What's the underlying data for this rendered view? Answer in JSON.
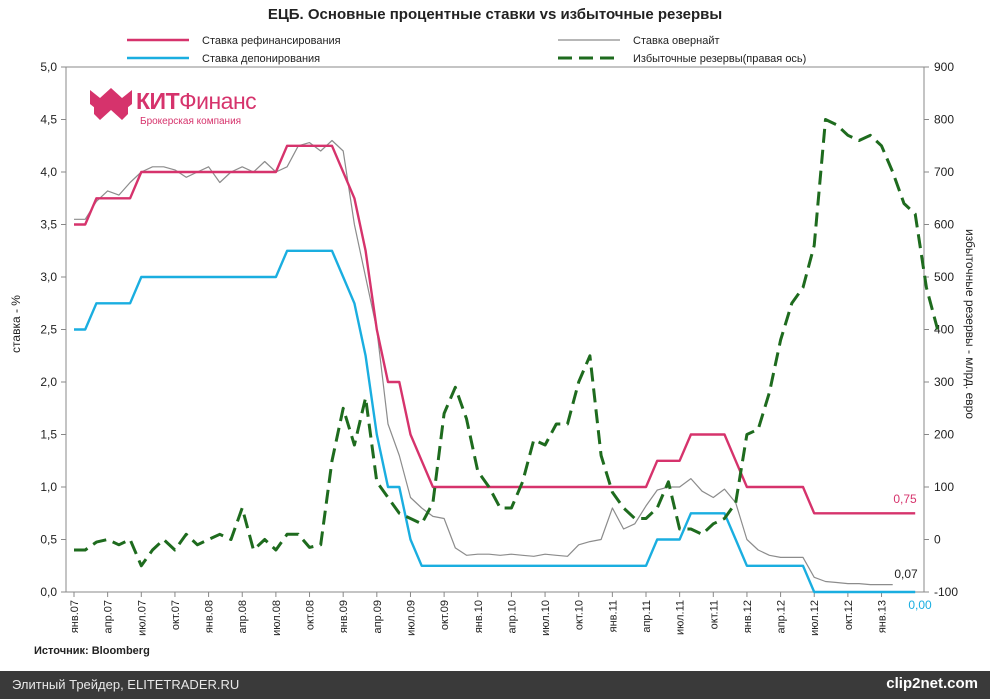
{
  "chart_data": {
    "type": "line",
    "title": "ЕЦБ. Основные процентные ставки vs избыточные резервы",
    "ylabel_left": "ставка - %",
    "ylabel_right": "избыточные резервы - млрд. евро",
    "source": "Источник: Bloomberg",
    "ylim_left": [
      0,
      5
    ],
    "ylim_right": [
      -100,
      900
    ],
    "yticks_left": [
      "0,0",
      "0,5",
      "1,0",
      "1,5",
      "2,0",
      "2,5",
      "3,0",
      "3,5",
      "4,0",
      "4,5",
      "5,0"
    ],
    "yticks_right": [
      "-100",
      "0",
      "100",
      "200",
      "300",
      "400",
      "500",
      "600",
      "700",
      "800",
      "900"
    ],
    "x_ticks": [
      "янв.07",
      "апр.07",
      "июл.07",
      "окт.07",
      "янв.08",
      "апр.08",
      "июл.08",
      "окт.08",
      "янв.09",
      "апр.09",
      "июл.09",
      "окт.09",
      "янв.10",
      "апр.10",
      "июл.10",
      "окт.10",
      "янв.11",
      "апр.11",
      "июл.11",
      "окт.11",
      "янв.12",
      "апр.12",
      "июл.12",
      "окт.12",
      "янв.13"
    ],
    "x_range_months": [
      0,
      25.5
    ],
    "legend_position": "top",
    "series": [
      {
        "name": "Ставка рефинансирования",
        "axis": "left",
        "color": "#d6336c",
        "style": "solid",
        "points": [
          [
            0,
            3.5
          ],
          [
            1,
            3.5
          ],
          [
            2,
            3.75
          ],
          [
            5,
            3.75
          ],
          [
            6,
            4.0
          ],
          [
            18,
            4.0
          ],
          [
            19,
            4.25
          ],
          [
            23,
            4.25
          ],
          [
            25,
            3.75
          ],
          [
            26,
            3.25
          ],
          [
            27,
            2.5
          ],
          [
            28,
            2.0
          ],
          [
            29,
            2.0
          ],
          [
            30,
            1.5
          ],
          [
            31,
            1.25
          ],
          [
            32,
            1.0
          ],
          [
            51,
            1.0
          ],
          [
            52,
            1.25
          ],
          [
            54,
            1.25
          ],
          [
            55,
            1.5
          ],
          [
            58,
            1.5
          ],
          [
            59,
            1.25
          ],
          [
            60,
            1.0
          ],
          [
            62,
            1.0
          ],
          [
            65,
            1.0
          ],
          [
            66,
            0.75
          ],
          [
            75,
            0.75
          ]
        ],
        "end_label": "0,75"
      },
      {
        "name": "Ставка депонирования",
        "axis": "left",
        "color": "#1aaee0",
        "style": "solid",
        "points": [
          [
            0,
            2.5
          ],
          [
            1,
            2.5
          ],
          [
            2,
            2.75
          ],
          [
            5,
            2.75
          ],
          [
            6,
            3.0
          ],
          [
            18,
            3.0
          ],
          [
            19,
            3.25
          ],
          [
            23,
            3.25
          ],
          [
            24,
            3.0
          ],
          [
            25,
            2.75
          ],
          [
            26,
            2.25
          ],
          [
            27,
            1.5
          ],
          [
            28,
            1.0
          ],
          [
            29,
            1.0
          ],
          [
            30,
            0.5
          ],
          [
            31,
            0.25
          ],
          [
            51,
            0.25
          ],
          [
            52,
            0.5
          ],
          [
            54,
            0.5
          ],
          [
            55,
            0.75
          ],
          [
            58,
            0.75
          ],
          [
            59,
            0.5
          ],
          [
            60,
            0.25
          ],
          [
            65,
            0.25
          ],
          [
            66,
            0.0
          ],
          [
            75,
            0.0
          ]
        ],
        "end_label": "0,00"
      },
      {
        "name": "Ставка овернайт",
        "axis": "left",
        "color": "#8c8c8c",
        "style": "thin",
        "points": [
          [
            0,
            3.55
          ],
          [
            1,
            3.55
          ],
          [
            2,
            3.72
          ],
          [
            3,
            3.82
          ],
          [
            4,
            3.78
          ],
          [
            5,
            3.9
          ],
          [
            6,
            4.0
          ],
          [
            7,
            4.05
          ],
          [
            8,
            4.05
          ],
          [
            9,
            4.02
          ],
          [
            10,
            3.95
          ],
          [
            11,
            4.0
          ],
          [
            12,
            4.05
          ],
          [
            13,
            3.9
          ],
          [
            14,
            4.0
          ],
          [
            15,
            4.05
          ],
          [
            16,
            4.0
          ],
          [
            17,
            4.1
          ],
          [
            18,
            4.0
          ],
          [
            19,
            4.05
          ],
          [
            20,
            4.25
          ],
          [
            21,
            4.28
          ],
          [
            22,
            4.2
          ],
          [
            23,
            4.3
          ],
          [
            24,
            4.2
          ],
          [
            25,
            3.5
          ],
          [
            26,
            3.0
          ],
          [
            27,
            2.5
          ],
          [
            28,
            1.6
          ],
          [
            29,
            1.3
          ],
          [
            30,
            0.9
          ],
          [
            31,
            0.8
          ],
          [
            32,
            0.72
          ],
          [
            33,
            0.7
          ],
          [
            34,
            0.42
          ],
          [
            35,
            0.35
          ],
          [
            36,
            0.36
          ],
          [
            37,
            0.36
          ],
          [
            38,
            0.35
          ],
          [
            39,
            0.36
          ],
          [
            40,
            0.35
          ],
          [
            41,
            0.34
          ],
          [
            42,
            0.36
          ],
          [
            43,
            0.35
          ],
          [
            44,
            0.34
          ],
          [
            45,
            0.45
          ],
          [
            46,
            0.48
          ],
          [
            47,
            0.5
          ],
          [
            48,
            0.8
          ],
          [
            49,
            0.6
          ],
          [
            50,
            0.65
          ],
          [
            51,
            0.82
          ],
          [
            52,
            0.97
          ],
          [
            53,
            1.0
          ],
          [
            54,
            1.0
          ],
          [
            55,
            1.08
          ],
          [
            56,
            0.96
          ],
          [
            57,
            0.9
          ],
          [
            58,
            0.98
          ],
          [
            59,
            0.85
          ],
          [
            60,
            0.5
          ],
          [
            61,
            0.4
          ],
          [
            62,
            0.35
          ],
          [
            63,
            0.33
          ],
          [
            64,
            0.33
          ],
          [
            65,
            0.33
          ],
          [
            66,
            0.14
          ],
          [
            67,
            0.1
          ],
          [
            68,
            0.09
          ],
          [
            69,
            0.08
          ],
          [
            70,
            0.08
          ],
          [
            71,
            0.07
          ],
          [
            72,
            0.07
          ],
          [
            73,
            0.07
          ]
        ],
        "end_label": "0,07"
      },
      {
        "name": "Избыточные резервы(правая ось)",
        "axis": "right",
        "color": "#1e6b1e",
        "style": "dashed",
        "points": [
          [
            0,
            -20
          ],
          [
            1,
            -20
          ],
          [
            2,
            -5
          ],
          [
            3,
            0
          ],
          [
            4,
            -10
          ],
          [
            5,
            0
          ],
          [
            6,
            -50
          ],
          [
            7,
            -20
          ],
          [
            8,
            0
          ],
          [
            9,
            -20
          ],
          [
            10,
            10
          ],
          [
            11,
            -10
          ],
          [
            12,
            0
          ],
          [
            13,
            10
          ],
          [
            14,
            0
          ],
          [
            15,
            60
          ],
          [
            16,
            -20
          ],
          [
            17,
            0
          ],
          [
            18,
            -20
          ],
          [
            19,
            10
          ],
          [
            20,
            10
          ],
          [
            21,
            -15
          ],
          [
            22,
            -10
          ],
          [
            23,
            150
          ],
          [
            24,
            250
          ],
          [
            25,
            180
          ],
          [
            26,
            270
          ],
          [
            27,
            110
          ],
          [
            28,
            80
          ],
          [
            29,
            50
          ],
          [
            30,
            40
          ],
          [
            31,
            30
          ],
          [
            32,
            70
          ],
          [
            33,
            240
          ],
          [
            34,
            290
          ],
          [
            35,
            230
          ],
          [
            36,
            130
          ],
          [
            37,
            100
          ],
          [
            38,
            60
          ],
          [
            39,
            60
          ],
          [
            40,
            110
          ],
          [
            41,
            190
          ],
          [
            42,
            180
          ],
          [
            43,
            220
          ],
          [
            44,
            220
          ],
          [
            45,
            300
          ],
          [
            46,
            350
          ],
          [
            47,
            160
          ],
          [
            48,
            90
          ],
          [
            49,
            60
          ],
          [
            50,
            40
          ],
          [
            51,
            40
          ],
          [
            52,
            60
          ],
          [
            53,
            110
          ],
          [
            54,
            20
          ],
          [
            55,
            20
          ],
          [
            56,
            10
          ],
          [
            57,
            30
          ],
          [
            58,
            40
          ],
          [
            59,
            70
          ],
          [
            60,
            200
          ],
          [
            61,
            210
          ],
          [
            62,
            280
          ],
          [
            63,
            380
          ],
          [
            64,
            450
          ],
          [
            65,
            480
          ],
          [
            66,
            560
          ],
          [
            67,
            800
          ],
          [
            68,
            790
          ],
          [
            69,
            770
          ],
          [
            70,
            760
          ],
          [
            71,
            770
          ],
          [
            72,
            750
          ],
          [
            73,
            700
          ],
          [
            74,
            640
          ],
          [
            75,
            620
          ],
          [
            76,
            480
          ],
          [
            77,
            400
          ]
        ]
      }
    ]
  },
  "logo": {
    "brand_bold": "КИТ",
    "brand_thin": "Финанс",
    "subtitle": "Брокерская компания"
  },
  "footer": {
    "left_text": "Элитный Трейдер, ELITETRADER.RU",
    "right_text": "clip2net.com"
  }
}
